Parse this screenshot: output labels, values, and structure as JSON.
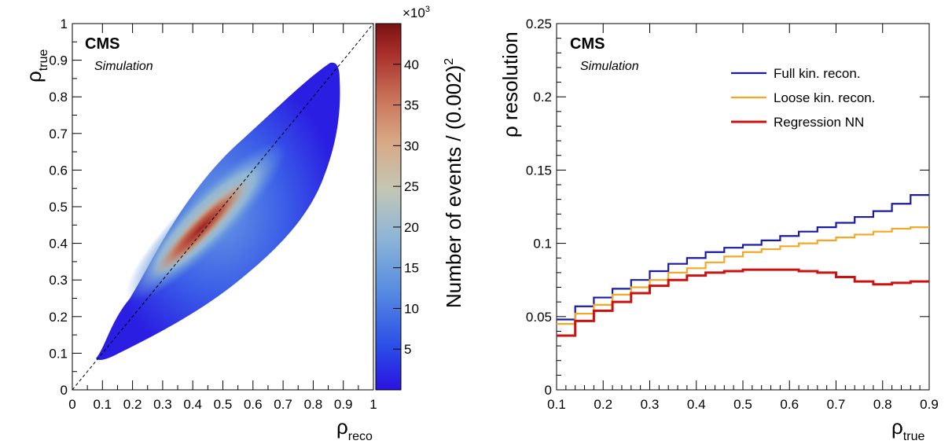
{
  "chart_data": [
    {
      "type": "heatmap",
      "title": "",
      "experiment": "CMS",
      "subtitle": "Simulation",
      "xlabel": "ρ",
      "xlabel_sub": "reco",
      "ylabel": "ρ",
      "ylabel_sub": "true",
      "xlim": [
        0,
        1
      ],
      "ylim": [
        0,
        1
      ],
      "xticks": [
        "0",
        "0.1",
        "0.2",
        "0.3",
        "0.4",
        "0.5",
        "0.6",
        "0.7",
        "0.8",
        "0.9",
        "1"
      ],
      "yticks": [
        "0",
        "0.1",
        "0.2",
        "0.3",
        "0.4",
        "0.5",
        "0.6",
        "0.7",
        "0.8",
        "0.9",
        "1"
      ],
      "diagonal_reference_line": true,
      "colorbar": {
        "label": "Number of events / (0.002)",
        "label_power": "2",
        "multiplier": "×10",
        "multiplier_power": "3",
        "range": [
          0,
          45
        ],
        "ticks": [
          "5",
          "10",
          "15",
          "20",
          "25",
          "30",
          "35",
          "40"
        ],
        "colormap": "kBird/rainbow blue-to-red"
      },
      "distribution": {
        "description_core_peak_at": [
          0.42,
          0.44
        ],
        "peak_value_thousands": 44
      }
    },
    {
      "type": "line",
      "title": "",
      "experiment": "CMS",
      "subtitle": "Simulation",
      "xlabel": "ρ",
      "xlabel_sub": "true",
      "ylabel": "ρ resolution",
      "xlim": [
        0.1,
        0.9
      ],
      "ylim": [
        0,
        0.25
      ],
      "xticks": [
        "0.1",
        "0.2",
        "0.3",
        "0.4",
        "0.5",
        "0.6",
        "0.7",
        "0.8",
        "0.9"
      ],
      "yticks": [
        "0",
        "0.05",
        "0.1",
        "0.15",
        "0.2",
        "0.25"
      ],
      "legend_position": "top-right",
      "bin_edges": [
        0.1,
        0.14,
        0.18,
        0.22,
        0.26,
        0.3,
        0.34,
        0.38,
        0.42,
        0.46,
        0.5,
        0.54,
        0.58,
        0.62,
        0.66,
        0.7,
        0.74,
        0.78,
        0.82,
        0.86,
        0.9
      ],
      "series": [
        {
          "name": "Full kin. recon.",
          "color": "#1a1aa6",
          "values": [
            0.048,
            0.057,
            0.063,
            0.069,
            0.075,
            0.081,
            0.086,
            0.09,
            0.094,
            0.097,
            0.099,
            0.102,
            0.105,
            0.108,
            0.111,
            0.114,
            0.118,
            0.122,
            0.127,
            0.133
          ]
        },
        {
          "name": "Loose kin. recon.",
          "color": "#f5a623",
          "values": [
            0.045,
            0.052,
            0.058,
            0.065,
            0.07,
            0.075,
            0.08,
            0.083,
            0.087,
            0.091,
            0.094,
            0.096,
            0.098,
            0.1,
            0.102,
            0.104,
            0.106,
            0.108,
            0.11,
            0.111
          ]
        },
        {
          "name": "Regression NN",
          "color": "#cc1111",
          "values": [
            0.037,
            0.047,
            0.054,
            0.06,
            0.066,
            0.071,
            0.075,
            0.078,
            0.08,
            0.081,
            0.082,
            0.082,
            0.082,
            0.081,
            0.08,
            0.077,
            0.074,
            0.072,
            0.073,
            0.074
          ]
        }
      ]
    }
  ]
}
